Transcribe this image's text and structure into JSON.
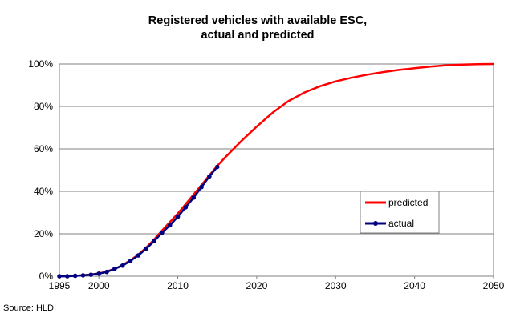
{
  "chart_data": {
    "type": "line",
    "title_lines": [
      "Registered vehicles with available ESC,",
      "actual and predicted"
    ],
    "xlabel": "",
    "ylabel": "",
    "xlim": [
      1995,
      2050
    ],
    "ylim": [
      0,
      100
    ],
    "x_ticks": [
      "1995",
      "2000",
      "2010",
      "2020",
      "2030",
      "2040",
      "2050"
    ],
    "y_ticks": [
      "0%",
      "20%",
      "40%",
      "60%",
      "80%",
      "100%"
    ],
    "grid": "horizontal",
    "legend_position": "right",
    "source": "Source: HLDI",
    "series": [
      {
        "name": "predicted",
        "color": "#ff0000",
        "marker": "none",
        "x": [
          1995,
          1996,
          1997,
          1998,
          1999,
          2000,
          2001,
          2002,
          2003,
          2004,
          2005,
          2006,
          2007,
          2008,
          2009,
          2010,
          2011,
          2012,
          2013,
          2014,
          2015,
          2016,
          2018,
          2020,
          2022,
          2024,
          2026,
          2028,
          2030,
          2032,
          2034,
          2036,
          2038,
          2040,
          2042,
          2044,
          2046,
          2048,
          2050
        ],
        "values": [
          0,
          0,
          0.2,
          0.4,
          0.8,
          1.3,
          2.2,
          3.5,
          5.2,
          7.5,
          10.2,
          13.5,
          17.3,
          21.5,
          25.5,
          29.5,
          34,
          38.5,
          43,
          47.5,
          52,
          56,
          63.5,
          70.5,
          77,
          82.5,
          86.5,
          89.5,
          91.8,
          93.5,
          95,
          96.2,
          97.2,
          98,
          98.8,
          99.4,
          99.7,
          99.9,
          100
        ]
      },
      {
        "name": "actual",
        "color": "#000080",
        "marker": "circle",
        "x": [
          1995,
          1996,
          1997,
          1998,
          1999,
          2000,
          2001,
          2002,
          2003,
          2004,
          2005,
          2006,
          2007,
          2008,
          2009,
          2010,
          2011,
          2012,
          2013,
          2014,
          2015
        ],
        "values": [
          0,
          0,
          0.2,
          0.4,
          0.7,
          1.2,
          2,
          3.5,
          5,
          7.2,
          9.8,
          13,
          16.5,
          20.5,
          24,
          28,
          32.5,
          37,
          42,
          47,
          51.5
        ]
      }
    ]
  }
}
